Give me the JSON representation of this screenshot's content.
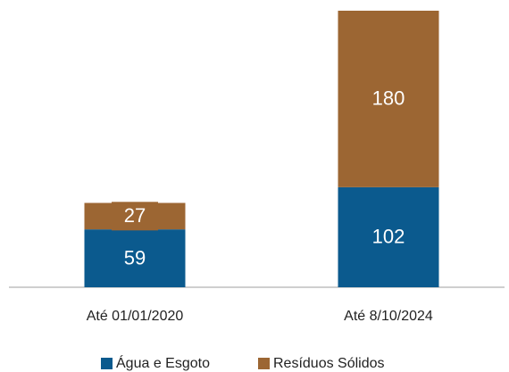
{
  "chart_data": {
    "type": "stacked_bar",
    "categories": [
      "Até 01/01/2020",
      "Até 8/10/2024"
    ],
    "series": [
      {
        "name": "Água e Esgoto",
        "color": "#0b5a8e",
        "values": [
          59,
          102
        ]
      },
      {
        "name": "Resíduos Sólidos",
        "color": "#9c6633",
        "values": [
          27,
          180
        ]
      }
    ],
    "legend": "bottom"
  }
}
